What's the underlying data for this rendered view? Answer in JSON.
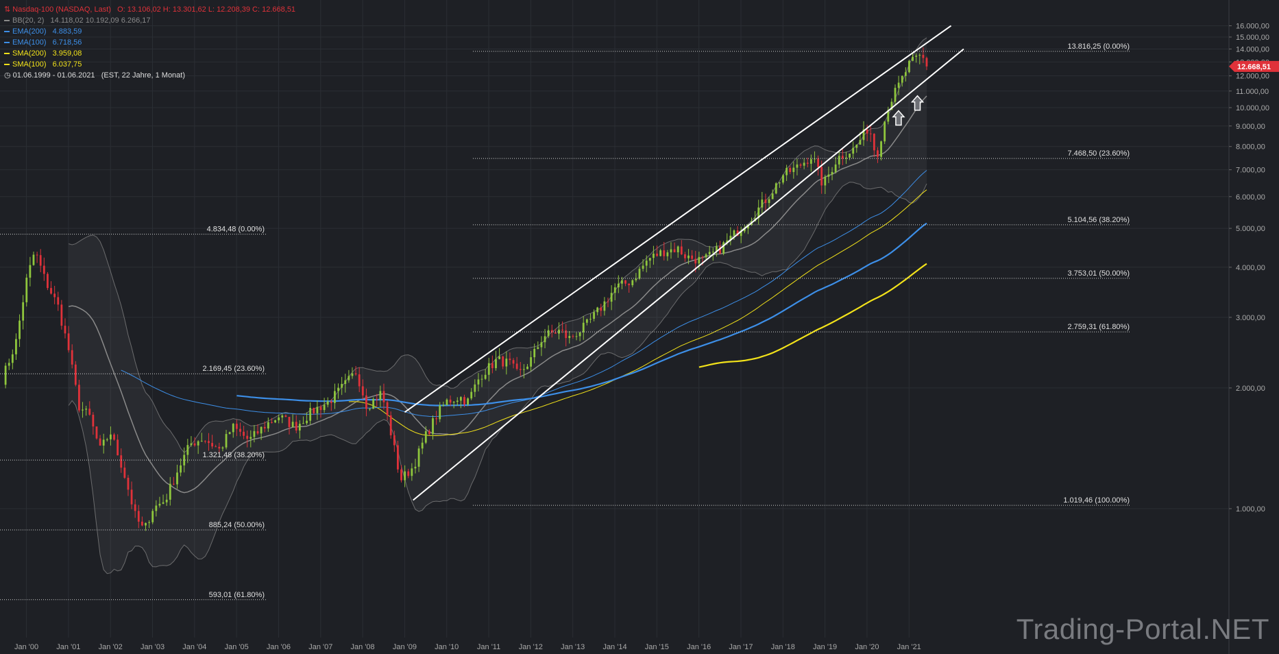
{
  "legend": {
    "instrument": "Nasdaq-100 (NASDAQ, Last)",
    "ohlc": "O: 13.106,02  H: 13.301,62  L: 12.208,39  C: 12.668,51",
    "indicators": [
      {
        "label": "BB(20, 2)",
        "values": "14.118,02  10.192,09  6.266,17",
        "color": "#8a8a8a"
      },
      {
        "label": "EMA(200)",
        "values": "4.883,59",
        "color": "#3d8fe8"
      },
      {
        "label": "EMA(100)",
        "values": "6.718,56",
        "color": "#3d8fe8"
      },
      {
        "label": "SMA(200)",
        "values": "3.959,08",
        "color": "#f2e21a"
      },
      {
        "label": "SMA(100)",
        "values": "6.037,75",
        "color": "#f2e21a"
      }
    ],
    "range": "01.06.1999 - 01.06.2021",
    "range_note": "(EST, 22 Jahre, 1 Monat)"
  },
  "last_price": "12.668,51",
  "watermark": "Trading-Portal.NET",
  "colors": {
    "background": "#1e2025",
    "up": "#8fc63d",
    "down": "#e0323a",
    "bb": "#8a8a8a",
    "ema": "#3d8fe8",
    "sma": "#f2e21a",
    "last_badge": "#e0323a"
  },
  "chart_data": {
    "type": "candlestick",
    "scale": "log",
    "ylim": [
      600,
      16000
    ],
    "x_range": [
      "1999-06",
      "2021-06"
    ],
    "y_ticks": [
      "1.000,00",
      "2.000,00",
      "3.000,00",
      "4.000,00",
      "5.000,00",
      "6.000,00",
      "7.000,00",
      "8.000,00",
      "9.000,00",
      "10.000,00",
      "11.000,00",
      "12.000,00",
      "13.000,00",
      "14.000,00",
      "15.000,00",
      "16.000,00"
    ],
    "y_tick_values": [
      1000,
      2000,
      3000,
      4000,
      5000,
      6000,
      7000,
      8000,
      9000,
      10000,
      11000,
      12000,
      13000,
      14000,
      15000,
      16000
    ],
    "x_ticks": [
      "Jan '00",
      "Jan '01",
      "Jan '02",
      "Jan '03",
      "Jan '04",
      "Jan '05",
      "Jan '06",
      "Jan '07",
      "Jan '08",
      "Jan '09",
      "Jan '10",
      "Jan '11",
      "Jan '12",
      "Jan '13",
      "Jan '14",
      "Jan '15",
      "Jan '16",
      "Jan '17",
      "Jan '18",
      "Jan '19",
      "Jan '20",
      "Jan '21"
    ],
    "x_tick_years": [
      2000,
      2001,
      2002,
      2003,
      2004,
      2005,
      2006,
      2007,
      2008,
      2009,
      2010,
      2011,
      2012,
      2013,
      2014,
      2015,
      2016,
      2017,
      2018,
      2019,
      2020,
      2021
    ],
    "anchors": [
      [
        1999.42,
        2100
      ],
      [
        1999.75,
        2600
      ],
      [
        2000.0,
        3700
      ],
      [
        2000.2,
        4400
      ],
      [
        2000.45,
        3700
      ],
      [
        2000.75,
        3200
      ],
      [
        2001.0,
        2500
      ],
      [
        2001.25,
        1800
      ],
      [
        2001.5,
        1700
      ],
      [
        2001.75,
        1400
      ],
      [
        2002.0,
        1550
      ],
      [
        2002.3,
        1250
      ],
      [
        2002.6,
        950
      ],
      [
        2002.8,
        880
      ],
      [
        2003.0,
        1000
      ],
      [
        2003.3,
        1050
      ],
      [
        2003.6,
        1250
      ],
      [
        2003.9,
        1450
      ],
      [
        2004.2,
        1500
      ],
      [
        2004.6,
        1400
      ],
      [
        2004.9,
        1600
      ],
      [
        2005.3,
        1480
      ],
      [
        2005.7,
        1620
      ],
      [
        2006.0,
        1700
      ],
      [
        2006.4,
        1600
      ],
      [
        2006.8,
        1750
      ],
      [
        2007.2,
        1850
      ],
      [
        2007.6,
        2050
      ],
      [
        2007.85,
        2200
      ],
      [
        2008.1,
        1800
      ],
      [
        2008.45,
        1950
      ],
      [
        2008.7,
        1500
      ],
      [
        2008.9,
        1180
      ],
      [
        2009.2,
        1270
      ],
      [
        2009.5,
        1520
      ],
      [
        2009.8,
        1740
      ],
      [
        2010.0,
        1850
      ],
      [
        2010.3,
        1900
      ],
      [
        2010.5,
        1850
      ],
      [
        2010.8,
        2150
      ],
      [
        2011.2,
        2350
      ],
      [
        2011.5,
        2300
      ],
      [
        2011.7,
        2150
      ],
      [
        2012.0,
        2350
      ],
      [
        2012.3,
        2700
      ],
      [
        2012.7,
        2780
      ],
      [
        2012.9,
        2650
      ],
      [
        2013.3,
        2850
      ],
      [
        2013.7,
        3200
      ],
      [
        2014.0,
        3550
      ],
      [
        2014.4,
        3700
      ],
      [
        2014.8,
        4200
      ],
      [
        2015.2,
        4400
      ],
      [
        2015.5,
        4450
      ],
      [
        2015.7,
        4250
      ],
      [
        2016.1,
        4150
      ],
      [
        2016.5,
        4450
      ],
      [
        2016.9,
        4900
      ],
      [
        2017.3,
        5400
      ],
      [
        2017.7,
        6100
      ],
      [
        2018.0,
        6800
      ],
      [
        2018.3,
        7050
      ],
      [
        2018.7,
        7600
      ],
      [
        2018.95,
        6400
      ],
      [
        2019.3,
        7500
      ],
      [
        2019.7,
        7900
      ],
      [
        2020.05,
        9000
      ],
      [
        2020.22,
        7500
      ],
      [
        2020.5,
        10100
      ],
      [
        2020.8,
        11600
      ],
      [
        2021.0,
        12800
      ],
      [
        2021.15,
        13200
      ],
      [
        2021.3,
        13500
      ],
      [
        2021.42,
        12668.51
      ]
    ],
    "last_close": 12668.51,
    "fib_sets": [
      {
        "levels": [
          {
            "label": "4.834,48 (0.00%)",
            "value": 4834.48
          },
          {
            "label": "2.169,45 (23.60%)",
            "value": 2169.45
          },
          {
            "label": "1.321,48 (38.20%)",
            "value": 1321.48
          },
          {
            "label": "885,24 (50.00%)",
            "value": 885.24
          },
          {
            "label": "593,01 (61.80%)",
            "value": 593.01
          }
        ]
      },
      {
        "levels": [
          {
            "label": "13.816,25 (0.00%)",
            "value": 13816.25
          },
          {
            "label": "7.468,50 (23.60%)",
            "value": 7468.5
          },
          {
            "label": "5.104,56 (38.20%)",
            "value": 5104.56
          },
          {
            "label": "3.753,01 (50.00%)",
            "value": 3753.01
          },
          {
            "label": "2.759,31 (61.80%)",
            "value": 2759.31
          },
          {
            "label": "1.019,46 (100.00%)",
            "value": 1019.46
          }
        ]
      }
    ],
    "channel_lines": [
      {
        "from": [
          2009.0,
          1740
        ],
        "to": [
          2022.0,
          16000
        ]
      },
      {
        "from": [
          2009.2,
          1050
        ],
        "to": [
          2022.3,
          14000
        ]
      }
    ],
    "arrows": [
      {
        "x": 2020.75,
        "y": 10100
      },
      {
        "x": 2021.2,
        "y": 11000
      }
    ]
  }
}
